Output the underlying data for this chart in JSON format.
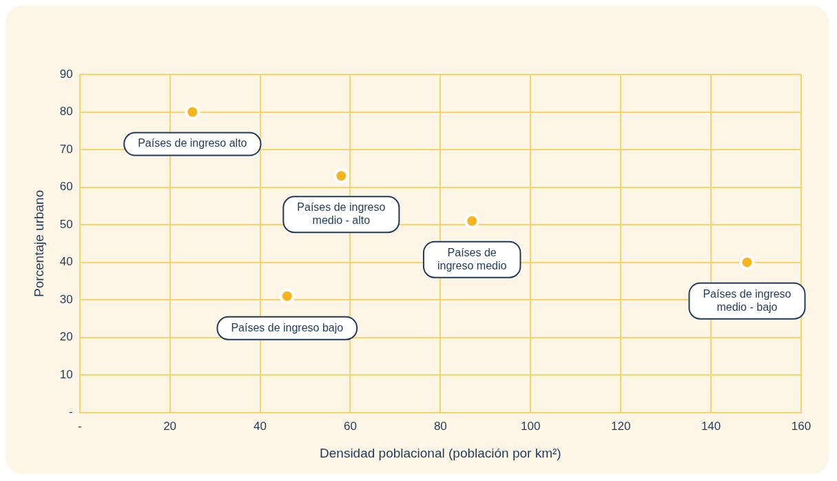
{
  "chart_data": {
    "type": "scatter",
    "xlabel": "Densidad poblacional (población por km²)",
    "ylabel": "Porcentaje urbano",
    "series": [
      {
        "color": "#f7b51b",
        "x": [
          25,
          58,
          87,
          46,
          148
        ],
        "values": [
          80,
          63,
          51,
          31,
          40
        ]
      }
    ],
    "xlim": [
      0,
      160
    ],
    "xticks": [
      {
        "value": 0,
        "label": "-"
      },
      20,
      40,
      60,
      80,
      100,
      120,
      140,
      160
    ],
    "ylim": [
      0,
      90
    ],
    "yticks": [
      {
        "value": 0,
        "label": "-"
      },
      10,
      20,
      30,
      40,
      50,
      60,
      70,
      80,
      90
    ],
    "grid": true,
    "marker": "circle",
    "annotations": [
      {
        "text": "Países de ingreso alto",
        "x": 25,
        "y": 80
      },
      {
        "text": "Países de ingreso\nmedio - alto",
        "x": 58,
        "y": 63
      },
      {
        "text": "Países de\ningreso medio",
        "x": 87,
        "y": 51
      },
      {
        "text": "Países de ingreso bajo",
        "x": 46,
        "y": 31
      },
      {
        "text": "Países de ingreso\nmedio - bajo",
        "x": 148,
        "y": 40
      }
    ]
  }
}
